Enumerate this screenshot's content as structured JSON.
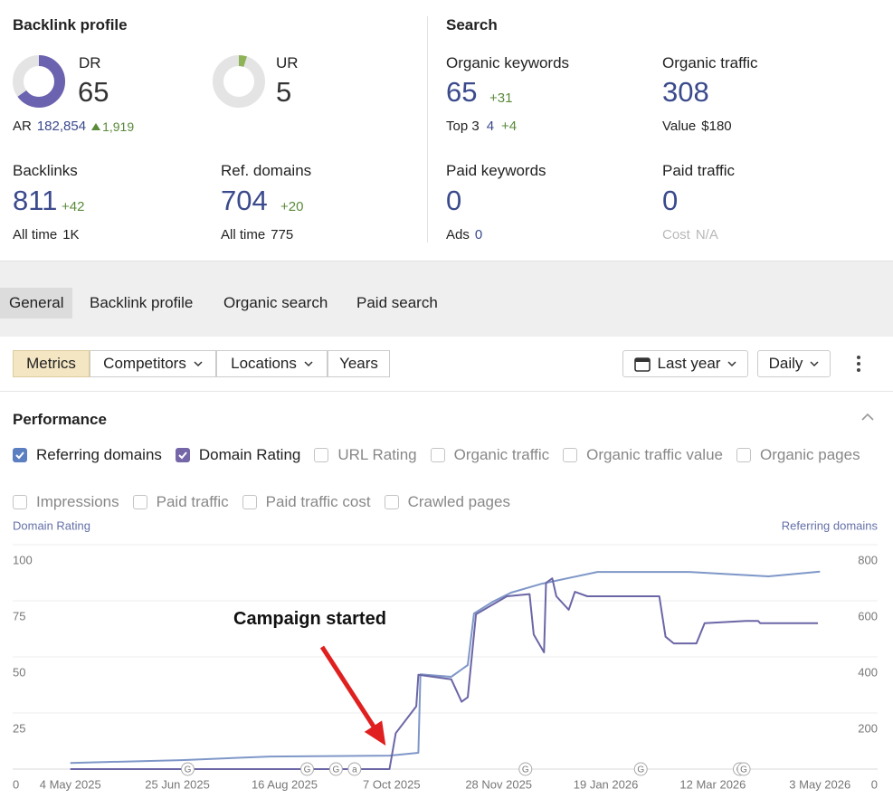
{
  "backlink_profile": {
    "title": "Backlink profile",
    "dr": {
      "label": "DR",
      "value": 65,
      "color": "#6b62b0"
    },
    "ur": {
      "label": "UR",
      "value": 5,
      "color": "#8db356"
    },
    "ar": {
      "label": "AR",
      "value": "182,854",
      "change": "1,919"
    },
    "backlinks": {
      "label": "Backlinks",
      "value": 811,
      "change": "+42",
      "all_time_label": "All time",
      "all_time": "1K"
    },
    "ref_domains": {
      "label": "Ref. domains",
      "value": 704,
      "change": "+20",
      "all_time_label": "All time",
      "all_time": "775"
    }
  },
  "search": {
    "title": "Search",
    "organic_keywords": {
      "label": "Organic keywords",
      "value": 65,
      "change": "+31",
      "sub_label": "Top 3",
      "sub_value": "4",
      "sub_change": "+4"
    },
    "organic_traffic": {
      "label": "Organic traffic",
      "value": 308,
      "sub_label": "Value",
      "sub_value": "$180"
    },
    "paid_keywords": {
      "label": "Paid keywords",
      "value": 0,
      "sub_label": "Ads",
      "sub_value": "0"
    },
    "paid_traffic": {
      "label": "Paid traffic",
      "value": 0,
      "sub_label": "Cost",
      "sub_value": "N/A"
    }
  },
  "tabs": [
    "General",
    "Backlink profile",
    "Organic search",
    "Paid search"
  ],
  "toolbar": {
    "buttons": [
      "Metrics",
      "Competitors",
      "Locations",
      "Years"
    ],
    "period": "Last year",
    "interval": "Daily"
  },
  "performance": {
    "title": "Performance",
    "metrics": [
      {
        "label": "Referring domains",
        "checked": true,
        "color": "#5b7fc0"
      },
      {
        "label": "Domain Rating",
        "checked": true,
        "color": "#7466a8"
      },
      {
        "label": "URL Rating",
        "checked": false
      },
      {
        "label": "Organic traffic",
        "checked": false
      },
      {
        "label": "Organic traffic value",
        "checked": false
      },
      {
        "label": "Organic pages",
        "checked": false
      },
      {
        "label": "Impressions",
        "checked": false
      },
      {
        "label": "Paid traffic",
        "checked": false
      },
      {
        "label": "Paid traffic cost",
        "checked": false
      },
      {
        "label": "Crawled pages",
        "checked": false
      }
    ]
  },
  "chart_data": {
    "type": "line",
    "xlim": [
      "2025-04-06",
      "2026-05-31"
    ],
    "xticks": [
      {
        "value": "2025-05-04",
        "label": "4 May 2025"
      },
      {
        "value": "2025-06-25",
        "label": "25 Jun 2025"
      },
      {
        "value": "2025-08-16",
        "label": "16 Aug 2025"
      },
      {
        "value": "2025-10-07",
        "label": "7 Oct 2025"
      },
      {
        "value": "2025-11-28",
        "label": "28 Nov 2025"
      },
      {
        "value": "2026-01-19",
        "label": "19 Jan 2026"
      },
      {
        "value": "2026-03-12",
        "label": "12 Mar 2026"
      },
      {
        "value": "2026-05-03",
        "label": "3 May 2026"
      }
    ],
    "ylim": [
      0,
      100
    ],
    "yticks": [
      0,
      25,
      50,
      75,
      100
    ],
    "y2lim": [
      0,
      800
    ],
    "y2ticks": [
      0,
      200,
      400,
      600,
      800
    ],
    "grid": true,
    "series": [
      {
        "name": "Domain Rating",
        "color": "#6b66a6",
        "x": [
          "2025-05-04",
          "2025-10-06",
          "2025-10-09",
          "2025-10-19",
          "2025-10-20",
          "2025-11-05",
          "2025-11-10",
          "2025-11-13",
          "2025-11-17",
          "2025-12-02",
          "2025-12-13",
          "2025-12-15",
          "2025-12-20",
          "2025-12-21",
          "2025-12-24",
          "2025-12-26",
          "2026-01-01",
          "2026-01-04",
          "2026-01-10",
          "2026-01-23",
          "2026-02-14",
          "2026-02-17",
          "2026-02-21",
          "2026-03-04",
          "2026-03-08",
          "2026-03-28",
          "2026-04-03",
          "2026-04-04",
          "2026-05-02"
        ],
        "values": [
          0,
          0,
          16,
          28,
          42,
          40,
          30,
          32,
          69,
          77,
          78,
          60,
          52,
          83,
          85,
          77,
          71,
          79,
          77,
          77,
          77,
          59,
          56,
          56,
          65,
          66,
          66,
          65,
          65
        ]
      },
      {
        "name": "Referring domains",
        "color": "#7f97c8",
        "axis": "y2",
        "x": [
          "2025-05-04",
          "2025-06-27",
          "2025-08-09",
          "2025-10-06",
          "2025-10-20",
          "2025-10-21",
          "2025-11-05",
          "2025-11-13",
          "2025-11-16",
          "2025-11-25",
          "2025-12-04",
          "2025-12-19",
          "2026-01-15",
          "2026-02-28",
          "2026-04-08",
          "2026-05-03"
        ],
        "values": [
          22,
          32,
          45,
          48,
          58,
          338,
          329,
          371,
          555,
          596,
          629,
          661,
          703,
          703,
          687,
          704
        ]
      }
    ],
    "events": [
      {
        "date": "2025-06-30",
        "label": "G"
      },
      {
        "date": "2025-08-27",
        "label": "G"
      },
      {
        "date": "2025-09-10",
        "label": "G"
      },
      {
        "date": "2025-09-19",
        "label": "a"
      },
      {
        "date": "2025-12-11",
        "label": "G"
      },
      {
        "date": "2026-02-05",
        "label": "G"
      },
      {
        "date": "2026-03-25",
        "label": "G"
      },
      {
        "date": "2026-03-27",
        "label": "G"
      }
    ],
    "annotation": "Campaign started"
  }
}
